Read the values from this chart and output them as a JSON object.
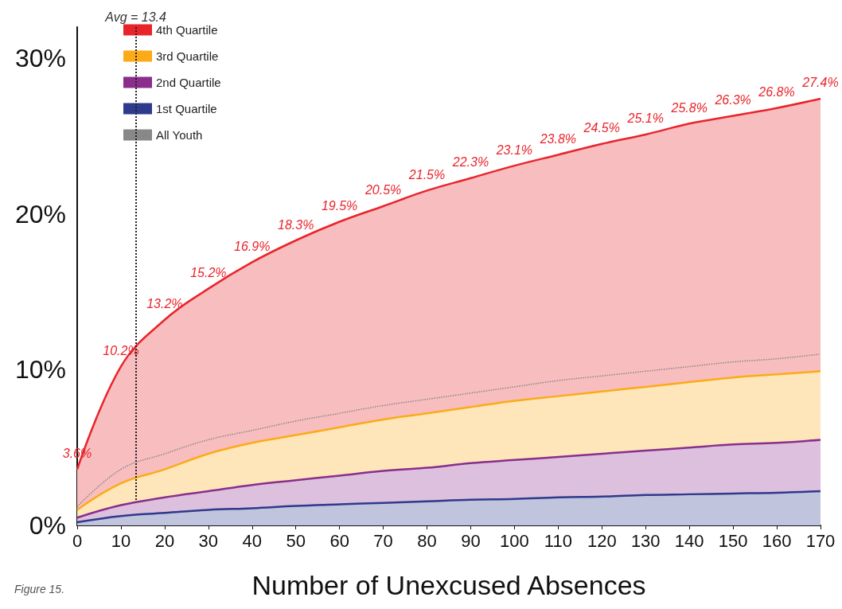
{
  "chart_data": {
    "type": "area",
    "xlabel": "Number of Unexcused Absences",
    "x": [
      0,
      10,
      20,
      30,
      40,
      50,
      60,
      70,
      80,
      90,
      100,
      110,
      120,
      130,
      140,
      150,
      160,
      170
    ],
    "series": [
      {
        "name": "4th Quartile",
        "color": "#e8242b",
        "values": [
          3.6,
          10.2,
          13.2,
          15.2,
          16.9,
          18.3,
          19.5,
          20.5,
          21.5,
          22.3,
          23.1,
          23.8,
          24.5,
          25.1,
          25.8,
          26.3,
          26.8,
          27.4
        ],
        "value_labels": [
          "3.6%",
          "10.2%",
          "13.2%",
          "15.2%",
          "16.9%",
          "18.3%",
          "19.5%",
          "20.5%",
          "21.5%",
          "22.3%",
          "23.1%",
          "23.8%",
          "24.5%",
          "25.1%",
          "25.8%",
          "26.3%",
          "26.8%",
          "27.4%"
        ]
      },
      {
        "name": "3rd Quartile",
        "color": "#fbab18",
        "values": [
          1.0,
          2.7,
          3.6,
          4.6,
          5.3,
          5.8,
          6.3,
          6.8,
          7.2,
          7.6,
          8.0,
          8.3,
          8.6,
          8.9,
          9.2,
          9.5,
          9.7,
          9.9
        ]
      },
      {
        "name": "2nd Quartile",
        "color": "#8a2e8c",
        "values": [
          0.5,
          1.3,
          1.8,
          2.2,
          2.6,
          2.9,
          3.2,
          3.5,
          3.7,
          4.0,
          4.2,
          4.4,
          4.6,
          4.8,
          5.0,
          5.2,
          5.3,
          5.5
        ]
      },
      {
        "name": "1st Quartile",
        "color": "#2e3a8c",
        "values": [
          0.2,
          0.6,
          0.8,
          1.0,
          1.1,
          1.25,
          1.35,
          1.45,
          1.55,
          1.65,
          1.7,
          1.8,
          1.85,
          1.95,
          2.0,
          2.05,
          2.1,
          2.2
        ]
      },
      {
        "name": "All Youth",
        "type": "line",
        "line_style": "dotted",
        "color": "#888888",
        "values": [
          1.2,
          3.6,
          4.6,
          5.5,
          6.1,
          6.7,
          7.2,
          7.7,
          8.1,
          8.5,
          8.9,
          9.3,
          9.6,
          9.9,
          10.2,
          10.5,
          10.7,
          11.0
        ]
      }
    ],
    "xlim": [
      0,
      170
    ],
    "xticks": [
      0,
      10,
      20,
      30,
      40,
      50,
      60,
      70,
      80,
      90,
      100,
      110,
      120,
      130,
      140,
      150,
      160,
      170
    ],
    "ylim": [
      0,
      32
    ],
    "yticks": [
      {
        "value": 0,
        "label": "0%"
      },
      {
        "value": 10,
        "label": "10%"
      },
      {
        "value": 20,
        "label": "20%"
      },
      {
        "value": 30,
        "label": "30%"
      }
    ],
    "ref_lines": [
      {
        "axis": "x",
        "value": 13.4,
        "label": "Avg = 13.4",
        "line_style": "dotted",
        "color": "#222222"
      }
    ],
    "annotations": [
      "Figure 15."
    ],
    "legend": "top left",
    "grid": false,
    "marker": "none"
  }
}
